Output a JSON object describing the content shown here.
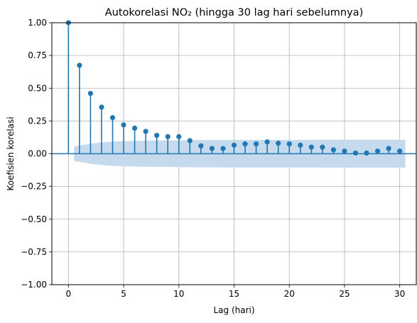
{
  "chart_data": {
    "type": "stem",
    "title": "Autokorelasi NO₂ (hingga 30 lag hari sebelumnya)",
    "xlabel": "Lag (hari)",
    "ylabel": "Koefisien korelasi",
    "xlim": [
      -1.5,
      31.5
    ],
    "ylim": [
      -1.0,
      1.0
    ],
    "xticks": [
      0,
      5,
      10,
      15,
      20,
      25,
      30
    ],
    "xtick_labels": [
      "0",
      "5",
      "10",
      "15",
      "20",
      "25",
      "30"
    ],
    "yticks": [
      -1.0,
      -0.75,
      -0.5,
      -0.25,
      0.0,
      0.25,
      0.5,
      0.75,
      1.0
    ],
    "ytick_labels": [
      "−1.00",
      "−0.75",
      "−0.50",
      "−0.25",
      "0.00",
      "0.25",
      "0.50",
      "0.75",
      "1.00"
    ],
    "grid": true,
    "lags": [
      0,
      1,
      2,
      3,
      4,
      5,
      6,
      7,
      8,
      9,
      10,
      11,
      12,
      13,
      14,
      15,
      16,
      17,
      18,
      19,
      20,
      21,
      22,
      23,
      24,
      25,
      26,
      27,
      28,
      29,
      30
    ],
    "values": [
      1.0,
      0.675,
      0.46,
      0.355,
      0.275,
      0.22,
      0.195,
      0.17,
      0.14,
      0.13,
      0.13,
      0.1,
      0.06,
      0.04,
      0.04,
      0.065,
      0.075,
      0.075,
      0.09,
      0.08,
      0.075,
      0.065,
      0.05,
      0.05,
      0.03,
      0.02,
      0.005,
      0.005,
      0.02,
      0.04,
      0.02
    ],
    "confidence_band": {
      "x_start": 0.5,
      "x_end": 30.5,
      "upper": [
        0.055,
        0.07,
        0.082,
        0.09,
        0.095,
        0.097,
        0.099,
        0.1,
        0.101,
        0.102,
        0.103,
        0.104,
        0.104,
        0.104,
        0.105,
        0.105,
        0.105,
        0.105,
        0.105,
        0.105,
        0.105,
        0.105,
        0.106,
        0.106,
        0.106,
        0.106,
        0.106,
        0.106,
        0.106,
        0.106,
        0.106
      ]
    },
    "colors": {
      "stem": "#1f77b4",
      "band": "#c5daec",
      "grid": "#b0b0b0",
      "axis": "#000000"
    }
  }
}
